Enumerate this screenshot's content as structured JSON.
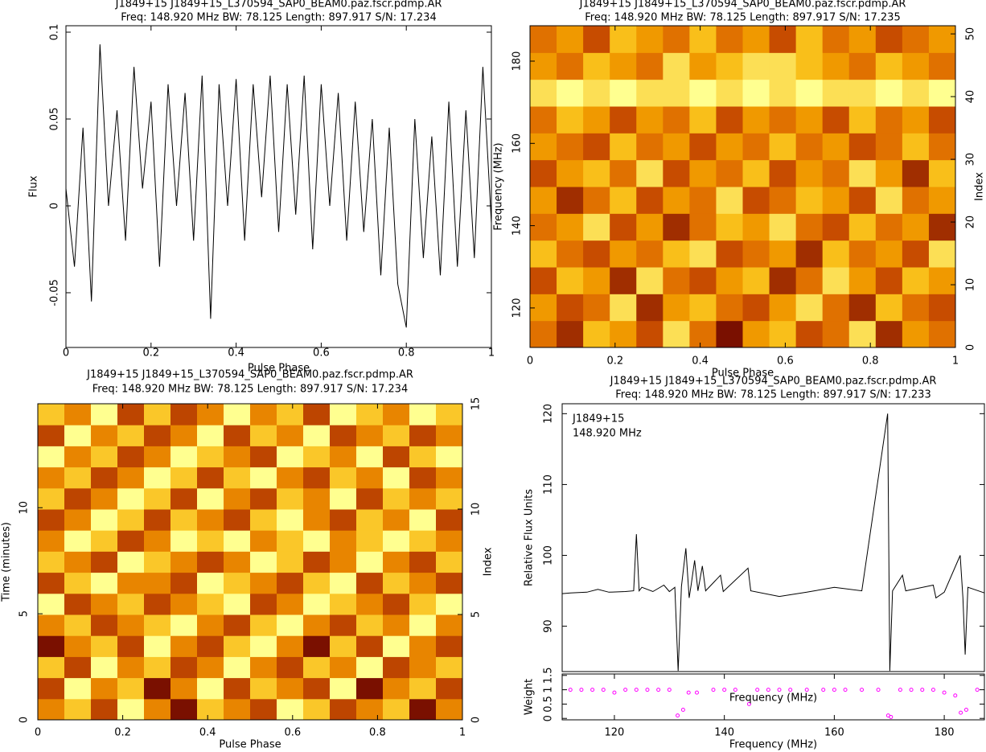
{
  "chart_data": [
    {
      "type": "line",
      "title": "J1849+15 J1849+15_L370594_SAP0_BEAM0.paz.fscr.pdmp.AR",
      "subtitle": "Freq: 148.920 MHz BW: 78.125 Length: 897.917 S/N: 17.234",
      "xlabel": "Pulse Phase",
      "ylabel": "Flux",
      "color": "#000000",
      "x": [
        0,
        0.02,
        0.04,
        0.06,
        0.08,
        0.1,
        0.12,
        0.14,
        0.16,
        0.18,
        0.2,
        0.22,
        0.24,
        0.26,
        0.28,
        0.3,
        0.32,
        0.34,
        0.36,
        0.38,
        0.4,
        0.42,
        0.44,
        0.46,
        0.48,
        0.5,
        0.52,
        0.54,
        0.56,
        0.58,
        0.6,
        0.62,
        0.64,
        0.66,
        0.68,
        0.7,
        0.72,
        0.74,
        0.76,
        0.78,
        0.8,
        0.82,
        0.84,
        0.86,
        0.88,
        0.9,
        0.92,
        0.94,
        0.96,
        0.98,
        1
      ],
      "values": [
        0.01,
        -0.035,
        0.045,
        -0.055,
        0.093,
        0,
        0.055,
        -0.02,
        0.08,
        0.01,
        0.06,
        -0.035,
        0.07,
        0,
        0.065,
        -0.02,
        0.075,
        -0.065,
        0.07,
        0,
        0.073,
        -0.02,
        0.07,
        0.005,
        0.075,
        -0.015,
        0.07,
        -0.005,
        0.075,
        -0.025,
        0.07,
        0,
        0.065,
        -0.02,
        0.06,
        -0.015,
        0.05,
        -0.04,
        0.045,
        -0.045,
        -0.07,
        0.05,
        -0.03,
        0.04,
        -0.04,
        0.06,
        -0.035,
        0.055,
        -0.03,
        0.08,
        -0.01
      ],
      "xlim": [
        0,
        1
      ],
      "xticks": [
        0,
        0.2,
        0.4,
        0.6,
        0.8,
        1
      ],
      "ylim": [
        -0.0815,
        0.1037
      ],
      "yticks": [
        -0.05,
        0,
        0.05,
        0.1
      ]
    },
    {
      "type": "heatmap",
      "title": "J1849+15 J1849+15_L370594_SAP0_BEAM0.paz.fscr.pdmp.AR",
      "subtitle": "Freq: 148.920 MHz BW: 78.125 Length: 897.917 S/N: 17.235",
      "xlabel": "Pulse Phase",
      "ylabel": "Frequency (MHz)",
      "y2label": "Index",
      "xlim": [
        0,
        1
      ],
      "xticks": [
        0,
        0.2,
        0.4,
        0.6,
        0.8,
        1
      ],
      "ylim": [
        110.4,
        188.6
      ],
      "yticks": [
        120,
        140,
        160,
        180
      ],
      "y2lim": [
        0,
        51.3
      ],
      "y2ticks": [
        0,
        10,
        20,
        30,
        40,
        50
      ],
      "z": [
        [
          5,
          3,
          7,
          6,
          4,
          8,
          5,
          2,
          6,
          7,
          4,
          5,
          8,
          3,
          6,
          5
        ],
        [
          6,
          4,
          5,
          8,
          3,
          6,
          7,
          5,
          4,
          6,
          8,
          5,
          3,
          7,
          5,
          4
        ],
        [
          4,
          7,
          6,
          3,
          8,
          5,
          4,
          6,
          7,
          3,
          5,
          8,
          6,
          4,
          7,
          6
        ],
        [
          7,
          5,
          4,
          6,
          5,
          7,
          8,
          4,
          5,
          6,
          3,
          7,
          5,
          6,
          4,
          8
        ],
        [
          5,
          6,
          8,
          4,
          6,
          3,
          5,
          7,
          6,
          8,
          5,
          4,
          7,
          5,
          6,
          3
        ],
        [
          6,
          3,
          5,
          7,
          4,
          6,
          5,
          8,
          4,
          5,
          7,
          6,
          4,
          8,
          5,
          6
        ],
        [
          4,
          6,
          7,
          5,
          8,
          4,
          6,
          5,
          7,
          4,
          6,
          5,
          8,
          6,
          3,
          7
        ],
        [
          6,
          5,
          4,
          7,
          5,
          6,
          4,
          6,
          5,
          7,
          5,
          6,
          4,
          5,
          7,
          5
        ],
        [
          5,
          7,
          6,
          4,
          6,
          5,
          7,
          4,
          6,
          5,
          6,
          4,
          7,
          5,
          6,
          4
        ],
        [
          8,
          9,
          8,
          9,
          8,
          8,
          9,
          8,
          9,
          8,
          9,
          8,
          8,
          9,
          8,
          9
        ],
        [
          6,
          5,
          7,
          6,
          5,
          8,
          6,
          7,
          8,
          8,
          7,
          6,
          5,
          7,
          6,
          5
        ],
        [
          5,
          6,
          4,
          7,
          6,
          5,
          7,
          5,
          6,
          4,
          7,
          5,
          6,
          4,
          5,
          6
        ]
      ]
    },
    {
      "type": "heatmap",
      "title": "J1849+15 J1849+15_L370594_SAP0_BEAM0.paz.fscr.pdmp.AR",
      "subtitle": "Freq: 148.920 MHz BW: 78.125 Length: 897.917 S/N: 17.234",
      "xlabel": "Pulse Phase",
      "ylabel": "Time (minutes)",
      "y2label": "Index",
      "xlim": [
        0,
        1
      ],
      "xticks": [
        0,
        0.2,
        0.4,
        0.6,
        0.8,
        1
      ],
      "ylim": [
        0,
        14.9
      ],
      "yticks": [
        0,
        5,
        10
      ],
      "y2lim": [
        0,
        15
      ],
      "y2ticks": [
        0,
        5,
        10,
        15
      ],
      "z": [
        [
          6,
          7,
          5,
          8,
          6,
          4,
          7,
          6,
          5,
          8,
          7,
          5,
          6,
          7,
          4,
          6
        ],
        [
          5,
          8,
          6,
          7,
          4,
          6,
          8,
          5,
          7,
          6,
          5,
          8,
          4,
          6,
          7,
          5
        ],
        [
          7,
          5,
          8,
          6,
          7,
          5,
          6,
          8,
          6,
          5,
          7,
          6,
          8,
          5,
          6,
          7
        ],
        [
          4,
          6,
          7,
          5,
          8,
          6,
          5,
          7,
          8,
          6,
          4,
          7,
          5,
          8,
          6,
          5
        ],
        [
          6,
          7,
          5,
          6,
          7,
          8,
          6,
          5,
          7,
          8,
          6,
          5,
          7,
          6,
          8,
          6
        ],
        [
          8,
          5,
          6,
          7,
          5,
          6,
          7,
          8,
          5,
          6,
          8,
          7,
          6,
          5,
          7,
          8
        ],
        [
          5,
          7,
          8,
          6,
          6,
          5,
          8,
          7,
          6,
          5,
          7,
          8,
          5,
          7,
          6,
          5
        ],
        [
          7,
          6,
          5,
          8,
          7,
          6,
          5,
          6,
          8,
          7,
          5,
          6,
          8,
          6,
          5,
          7
        ],
        [
          6,
          8,
          7,
          5,
          6,
          8,
          7,
          8,
          6,
          7,
          8,
          6,
          7,
          8,
          7,
          6
        ],
        [
          5,
          6,
          8,
          7,
          5,
          7,
          6,
          5,
          7,
          8,
          6,
          5,
          7,
          6,
          8,
          5
        ],
        [
          7,
          5,
          6,
          8,
          7,
          5,
          8,
          6,
          5,
          7,
          6,
          8,
          5,
          7,
          6,
          7
        ],
        [
          6,
          7,
          5,
          6,
          8,
          7,
          5,
          7,
          8,
          6,
          5,
          7,
          6,
          8,
          5,
          6
        ],
        [
          8,
          6,
          7,
          5,
          6,
          8,
          7,
          6,
          5,
          8,
          7,
          6,
          8,
          5,
          7,
          8
        ],
        [
          5,
          8,
          6,
          7,
          5,
          6,
          8,
          5,
          7,
          6,
          8,
          5,
          6,
          7,
          5,
          6
        ],
        [
          7,
          6,
          8,
          5,
          7,
          5,
          6,
          8,
          6,
          7,
          5,
          8,
          7,
          6,
          8,
          7
        ]
      ]
    },
    {
      "type": "line",
      "title": "J1849+15 J1849+15_L370594_SAP0_BEAM0.paz.fscr.pdmp.AR",
      "subtitle": "Freq: 148.920 MHz BW: 78.125 Length: 897.917 S/N: 17.233",
      "xlabel": "Frequency (MHz)",
      "ylabel": "Relative Flux Units",
      "color": "#000000",
      "annotations": [
        "J1849+15",
        "148.920 MHz"
      ],
      "x": [
        110.5,
        112,
        115,
        117,
        119,
        122,
        123.5,
        124,
        124.5,
        125,
        127,
        129,
        130,
        131,
        131.6,
        132.2,
        133,
        133.6,
        134,
        134.6,
        135.2,
        136,
        136.6,
        139.3,
        139.8,
        144.3,
        144.8,
        150,
        155,
        160,
        165,
        169.7,
        170.1,
        170.6,
        172.4,
        173,
        178,
        178.5,
        180,
        182.9,
        183.4,
        183.8,
        184.3,
        187.3
      ],
      "values": [
        94.6,
        94.7,
        94.8,
        95.2,
        94.8,
        94.9,
        95,
        103,
        95,
        95.5,
        94.9,
        95.8,
        94.9,
        95.5,
        83.7,
        95.6,
        101,
        94,
        96,
        99.3,
        95,
        98.5,
        95,
        97.2,
        94.9,
        98.2,
        95,
        94.2,
        94.8,
        95.5,
        95,
        120,
        83.7,
        95,
        97.2,
        95,
        95.8,
        94,
        94.8,
        100,
        94,
        86,
        95.5,
        94.7
      ],
      "xlim": [
        110.5,
        187.3
      ],
      "ylim": [
        83.6,
        121.4
      ],
      "yticks": [
        90,
        100,
        110,
        120
      ]
    },
    {
      "type": "scatter",
      "xlabel": "Frequency (MHz)",
      "ylabel": "Weight",
      "color": "#ff00ff",
      "x": [
        112,
        114,
        116,
        118,
        120,
        122,
        124,
        126,
        128,
        130,
        131.5,
        132.5,
        133.5,
        135,
        138,
        140,
        142,
        144.5,
        146,
        148,
        150,
        152,
        155,
        158,
        160,
        162,
        165,
        168,
        169.8,
        170.3,
        172,
        174,
        176,
        178,
        180,
        182,
        183,
        184,
        186
      ],
      "values": [
        1,
        1,
        1,
        1,
        0.9,
        1,
        1,
        1,
        1,
        1,
        0.1,
        0.3,
        0.9,
        0.9,
        1,
        1,
        1,
        0.5,
        1,
        1,
        1,
        1,
        1,
        1,
        1,
        1,
        1,
        1,
        0.1,
        0.05,
        1,
        1,
        1,
        1,
        0.9,
        0.8,
        0.2,
        0.3,
        1
      ],
      "xlim": [
        110.5,
        187.3
      ],
      "xticks": [
        120,
        140,
        160,
        180
      ],
      "ylim": [
        -0.05,
        1.55
      ],
      "yticks": [
        0,
        0.5,
        1,
        1.5
      ]
    }
  ]
}
